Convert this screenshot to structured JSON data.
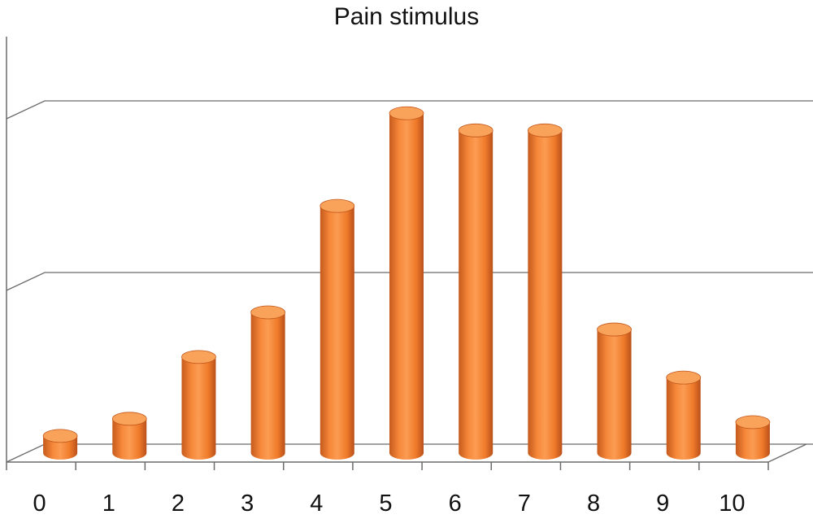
{
  "chart_data": {
    "type": "bar",
    "style": "3d-cylinder",
    "title": "Pain stimulus",
    "categories": [
      "0",
      "1",
      "2",
      "3",
      "4",
      "5",
      "6",
      "7",
      "8",
      "9",
      "10"
    ],
    "values": [
      0.5,
      1.0,
      2.8,
      4.1,
      7.2,
      9.9,
      9.4,
      9.4,
      3.6,
      2.2,
      0.9
    ],
    "ylim": [
      0,
      10
    ],
    "y_gridlines": [
      0,
      5,
      10
    ],
    "y_tick_labels_visible": false,
    "grid": true,
    "legend": "none",
    "colors": {
      "bar": "#f07e2c",
      "bar_dark": "#c2561a",
      "bar_light": "#f9a25a",
      "grid": "#6b6b6b"
    }
  }
}
